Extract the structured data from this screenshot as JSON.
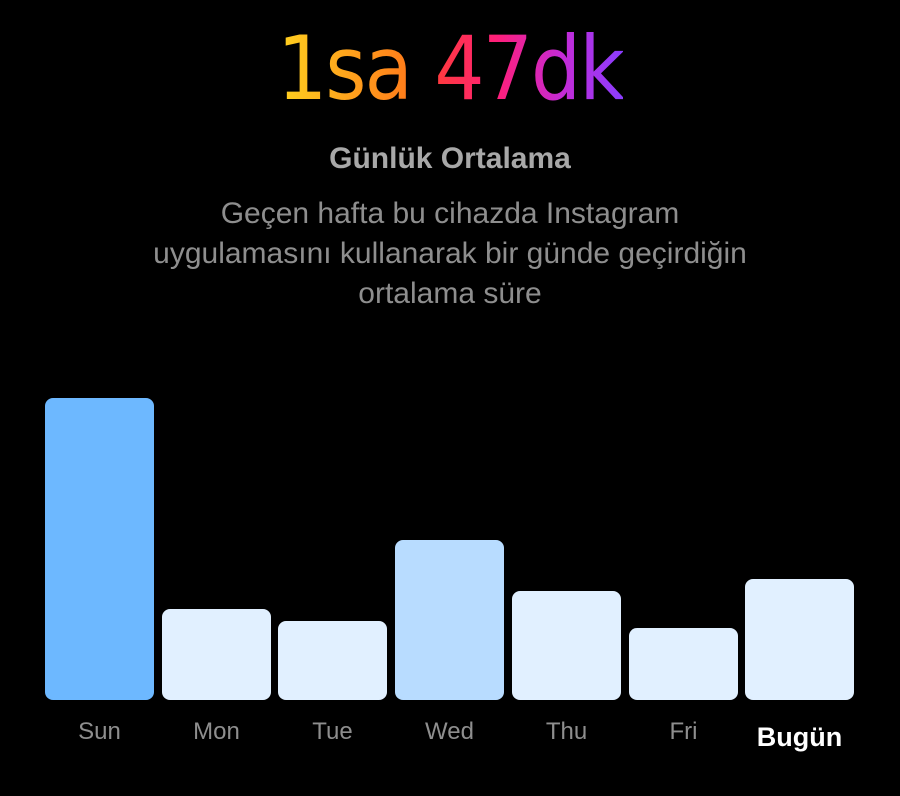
{
  "header": {
    "time_hours": "1sa",
    "time_minutes": "47dk",
    "title": "Günlük Ortalama",
    "description": "Geçen hafta bu cihazda Instagram uygulamasını kullanarak bir günde geçirdiğin ortalama süre"
  },
  "colors": {
    "gradient_hours": [
      "#ffd21f",
      "#ff7a1a"
    ],
    "gradient_minutes": [
      "#ff3b3b",
      "#ff1f7a",
      "#c62ad4",
      "#8b3dff"
    ],
    "bar_selected": "#6db8ff",
    "bar_highlight": "#b8dcff",
    "bar_default": "#e1f0ff"
  },
  "chart_data": {
    "type": "bar",
    "categories": [
      "Sun",
      "Mon",
      "Tue",
      "Wed",
      "Thu",
      "Fri",
      "Bugün"
    ],
    "values": [
      100,
      30,
      26,
      53,
      36,
      24,
      40
    ],
    "ylim": [
      0,
      100
    ],
    "highlighted": [
      "Sun",
      "Wed"
    ],
    "today_index": 6
  }
}
